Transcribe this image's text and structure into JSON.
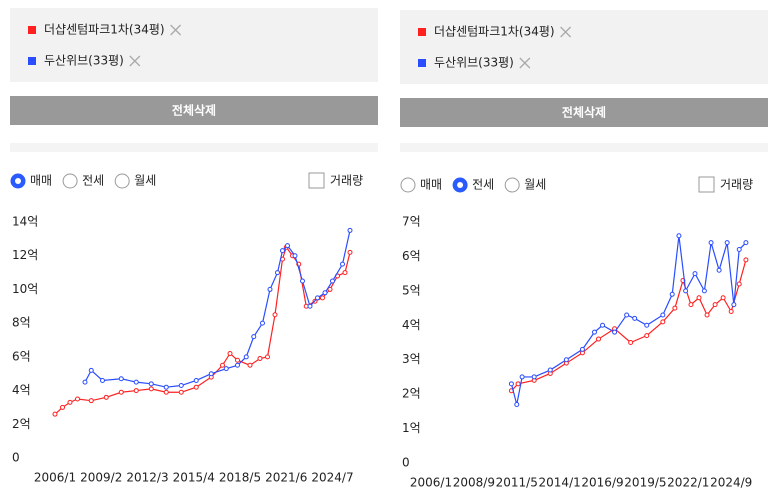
{
  "panels": [
    {
      "button": "전체삭제",
      "radios": [
        "매매",
        "전세",
        "월세"
      ],
      "selected": 0,
      "checkbox": "거래량"
    },
    {
      "button": "전체삭제",
      "radios": [
        "매매",
        "전세",
        "월세"
      ],
      "selected": 1,
      "checkbox": "거래량"
    }
  ],
  "chart_data": [
    {
      "type": "line",
      "grid": false,
      "xlim": [
        "2006/1",
        "2026/1"
      ],
      "xticks": [
        "2006/1",
        "2009/2",
        "2012/3",
        "2015/4",
        "2018/5",
        "2021/6",
        "2024/7"
      ],
      "ylim": [
        0,
        14
      ],
      "yticks": [
        0,
        {
          "value": 2,
          "label": "2억"
        },
        {
          "value": 4,
          "label": "4억"
        },
        {
          "value": 6,
          "label": "6억"
        },
        {
          "value": 8,
          "label": "8억"
        },
        {
          "value": 10,
          "label": "10억"
        },
        {
          "value": 12,
          "label": "12억"
        },
        {
          "value": 14,
          "label": "14억"
        }
      ],
      "series": [
        {
          "name": "더샵센텀파크1차(34평)",
          "color": "#ff2020",
          "x": [
            "2006/1",
            "2006/7",
            "2007/1",
            "2007/7",
            "2008/6",
            "2009/6",
            "2010/6",
            "2011/6",
            "2012/6",
            "2013/6",
            "2014/6",
            "2015/6",
            "2016/6",
            "2017/3",
            "2017/9",
            "2018/3",
            "2019/1",
            "2019/9",
            "2020/3",
            "2020/9",
            "2021/3",
            "2021/6",
            "2021/11",
            "2022/4",
            "2022/10",
            "2023/5",
            "2023/11",
            "2024/5",
            "2024/11",
            "2025/5",
            "2025/9"
          ],
          "values": [
            2.6,
            3.0,
            3.3,
            3.5,
            3.4,
            3.6,
            3.9,
            4.0,
            4.1,
            3.9,
            3.9,
            4.2,
            4.8,
            5.5,
            6.2,
            5.8,
            5.5,
            5.9,
            6.0,
            8.5,
            11.8,
            12.5,
            12.0,
            11.5,
            9.0,
            9.3,
            9.5,
            10.0,
            10.8,
            11.0,
            12.2
          ]
        },
        {
          "name": "두산위브(33평)",
          "color": "#2a4dff",
          "x": [
            "2008/1",
            "2008/6",
            "2009/3",
            "2010/6",
            "2011/6",
            "2012/6",
            "2013/6",
            "2014/6",
            "2015/6",
            "2016/6",
            "2017/6",
            "2018/3",
            "2018/10",
            "2019/4",
            "2019/11",
            "2020/5",
            "2020/11",
            "2021/3",
            "2021/7",
            "2022/1",
            "2022/7",
            "2023/1",
            "2023/7",
            "2024/1",
            "2024/7",
            "2025/3",
            "2025/9"
          ],
          "values": [
            4.5,
            5.2,
            4.6,
            4.7,
            4.5,
            4.4,
            4.2,
            4.3,
            4.6,
            5.0,
            5.3,
            5.5,
            6.0,
            7.2,
            8.0,
            10.0,
            11.0,
            12.3,
            12.6,
            12.0,
            10.5,
            9.0,
            9.5,
            9.8,
            10.5,
            11.5,
            13.5
          ]
        }
      ]
    },
    {
      "type": "line",
      "grid": false,
      "xlim": [
        "2006/1",
        "2025/10"
      ],
      "xticks": [
        "2006/1",
        "2008/9",
        "2011/5",
        "2014/1",
        "2016/9",
        "2019/5",
        "2022/1",
        "2024/9"
      ],
      "ylim": [
        0,
        7
      ],
      "yticks": [
        0,
        {
          "value": 1,
          "label": "1억"
        },
        {
          "value": 2,
          "label": "2억"
        },
        {
          "value": 3,
          "label": "3억"
        },
        {
          "value": 4,
          "label": "4억"
        },
        {
          "value": 5,
          "label": "5억"
        },
        {
          "value": 6,
          "label": "6억"
        },
        {
          "value": 7,
          "label": "7억"
        }
      ],
      "series": [
        {
          "name": "더샵센텀파크1차(34평)",
          "color": "#ff2020",
          "x": [
            "2011/1",
            "2011/6",
            "2012/6",
            "2013/6",
            "2014/6",
            "2015/6",
            "2016/6",
            "2017/6",
            "2018/6",
            "2019/6",
            "2020/6",
            "2021/3",
            "2021/9",
            "2022/3",
            "2022/9",
            "2023/3",
            "2023/9",
            "2024/3",
            "2024/9",
            "2025/3",
            "2025/8"
          ],
          "values": [
            2.1,
            2.3,
            2.4,
            2.6,
            2.9,
            3.2,
            3.6,
            3.9,
            3.5,
            3.7,
            4.1,
            4.5,
            5.3,
            4.6,
            4.8,
            4.3,
            4.6,
            4.8,
            4.4,
            5.2,
            5.9
          ]
        },
        {
          "name": "두산위브(33평)",
          "color": "#2a4dff",
          "x": [
            "2011/1",
            "2011/5",
            "2011/9",
            "2012/6",
            "2013/6",
            "2014/6",
            "2015/6",
            "2016/3",
            "2016/9",
            "2017/6",
            "2018/3",
            "2018/9",
            "2019/6",
            "2020/6",
            "2021/1",
            "2021/6",
            "2021/11",
            "2022/6",
            "2023/1",
            "2023/6",
            "2023/12",
            "2024/6",
            "2024/11",
            "2025/3",
            "2025/8"
          ],
          "values": [
            2.3,
            1.7,
            2.5,
            2.5,
            2.7,
            3.0,
            3.3,
            3.8,
            4.0,
            3.8,
            4.3,
            4.2,
            4.0,
            4.3,
            4.9,
            6.6,
            5.0,
            5.5,
            5.0,
            6.4,
            5.6,
            6.4,
            4.6,
            6.2,
            6.4
          ]
        }
      ]
    }
  ]
}
